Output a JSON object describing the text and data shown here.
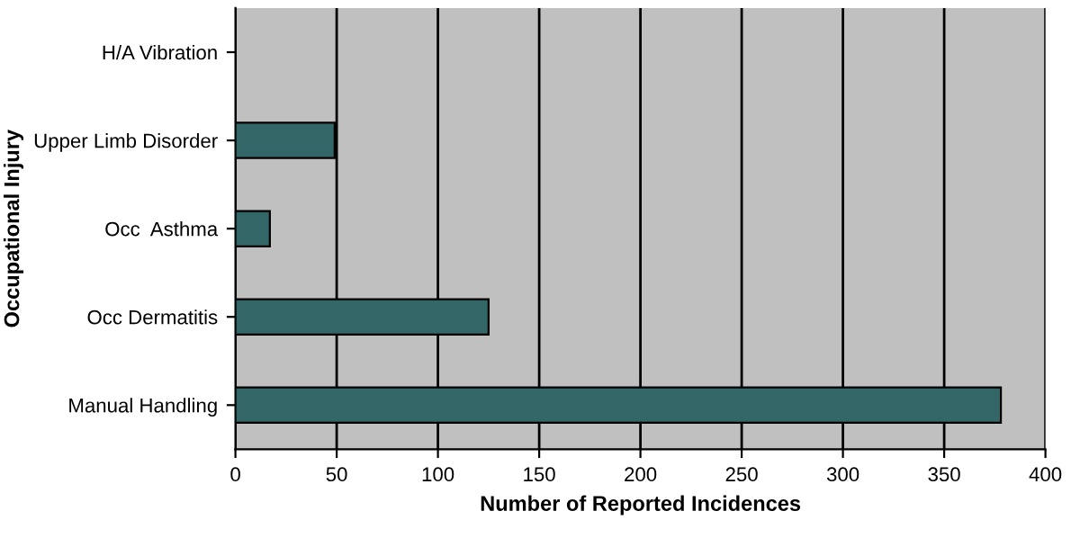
{
  "chart_data": {
    "type": "bar",
    "orientation": "horizontal",
    "xlabel": "Number of Reported Incidences",
    "ylabel": "Occupational Injury",
    "categories": [
      "H/A Vibration",
      "Upper Limb Disorder",
      "Occ  Asthma",
      "Occ Dermatitis",
      "Manual Handling"
    ],
    "values": [
      0,
      49,
      17,
      125,
      378
    ],
    "color": "#336666",
    "xlim": [
      0,
      400
    ],
    "xticks": [
      0,
      50,
      100,
      150,
      200,
      250,
      300,
      350,
      400
    ],
    "grid": "x"
  }
}
